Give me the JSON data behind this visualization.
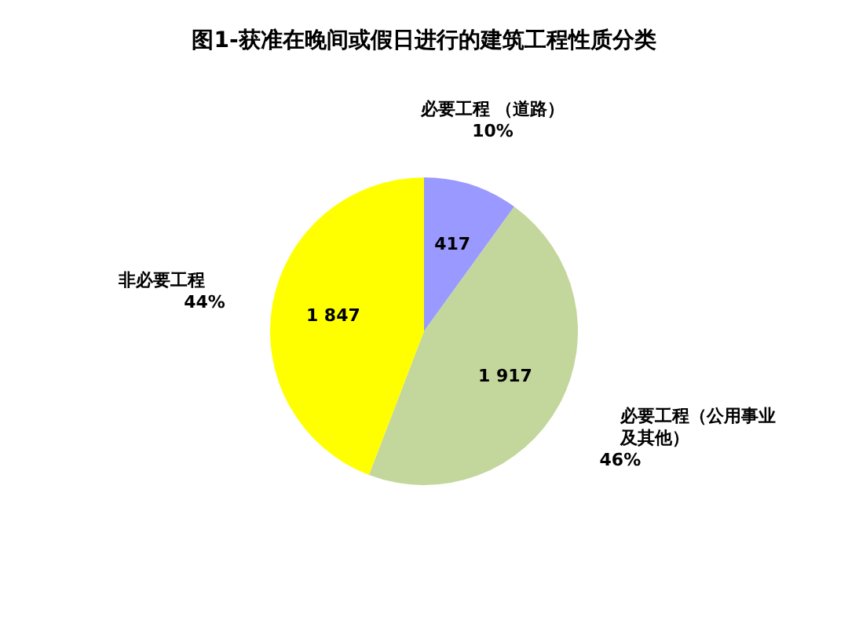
{
  "chart_data": {
    "type": "pie",
    "title": "图1-获准在晚间或假日进行的建筑工程性质分类",
    "categories": [
      "必要工程 （道路）",
      "必要工程（公用事业及其他）",
      "非必要工程"
    ],
    "values": [
      417,
      1917,
      1847
    ],
    "value_labels": [
      "417",
      "1 917",
      "1 847"
    ],
    "colors": [
      "#9999ff",
      "#c3d69b",
      "#ffff00"
    ],
    "annotations": [
      "10%",
      "46%",
      "44%"
    ]
  }
}
